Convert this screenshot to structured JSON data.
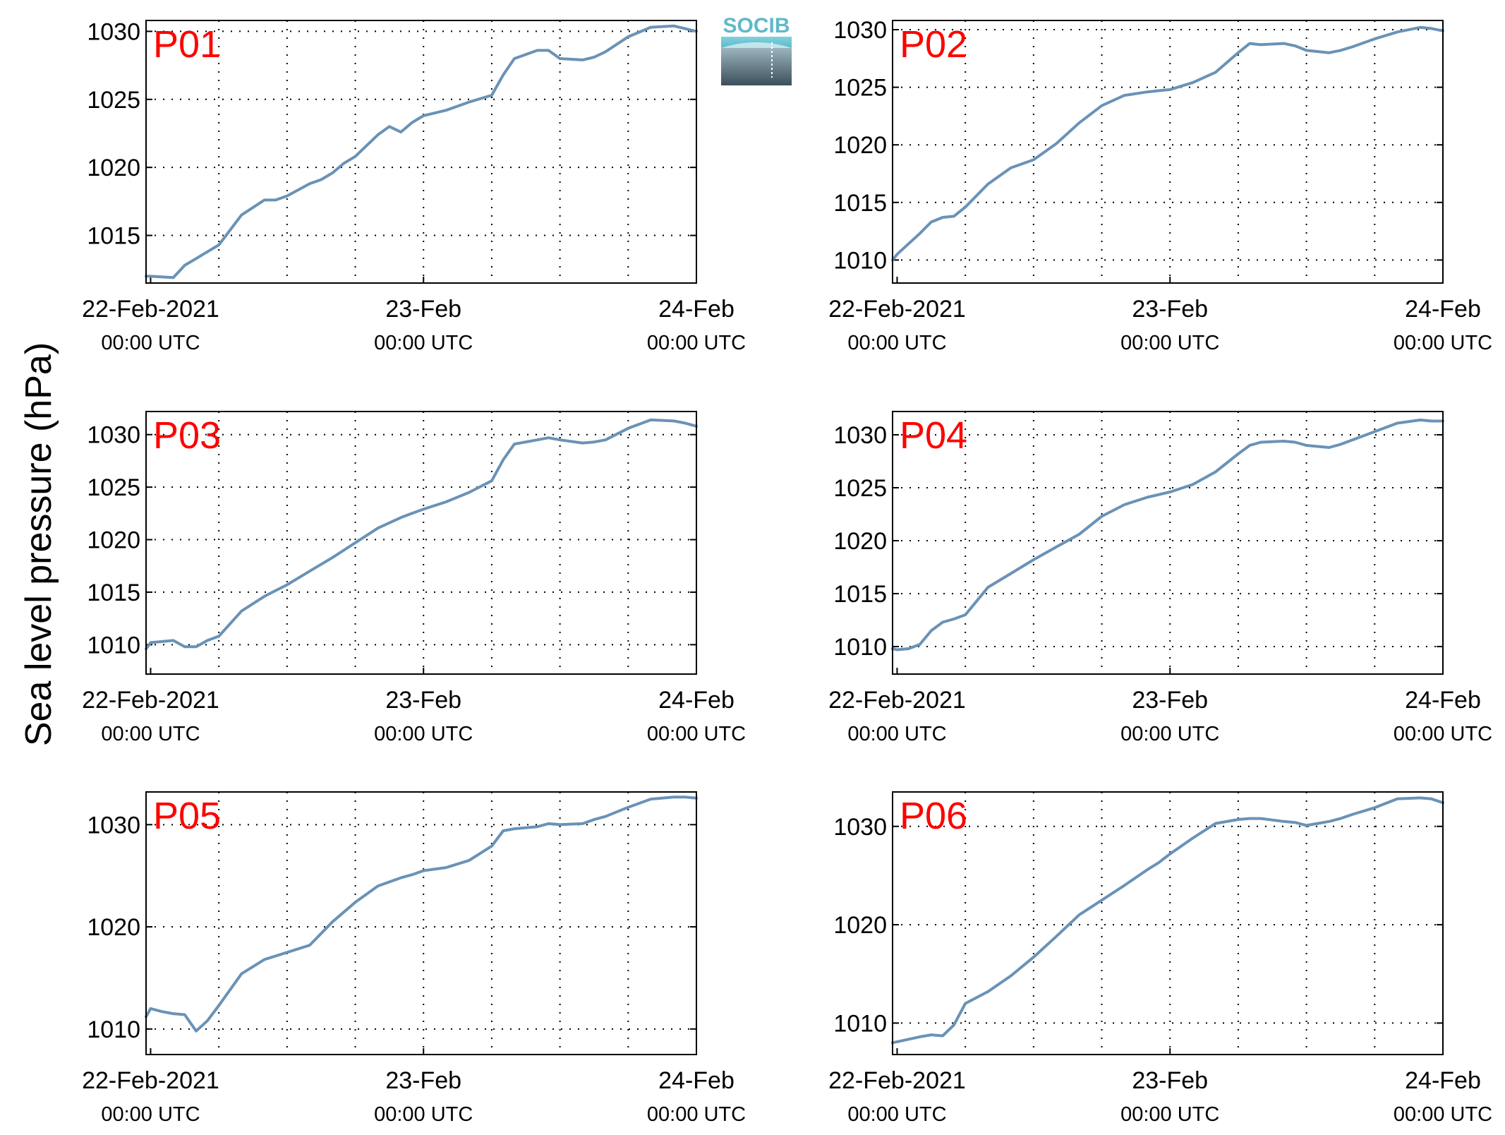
{
  "figure": {
    "ylabel": "Sea level pressure (hPa)",
    "logo_text": "SOCIB",
    "line_color": "#6a92b6",
    "label_color": "#ff0000",
    "x_ticks": [
      {
        "t": 0,
        "line1": "22-Feb-2021",
        "line2": "00:00 UTC"
      },
      {
        "t": 1,
        "line1": "23-Feb",
        "line2": "00:00 UTC"
      },
      {
        "t": 2,
        "line1": "24-Feb",
        "line2": "00:00 UTC"
      }
    ]
  },
  "chart_data": [
    {
      "type": "line",
      "title": "P01",
      "xlim": [
        -0.0167,
        2.0
      ],
      "ylim": [
        1011.5,
        1030.8
      ],
      "yticks": [
        1015,
        1020,
        1025,
        1030
      ],
      "series": [
        {
          "x": [
            -0.0167,
            0.0,
            0.083,
            0.125,
            0.167,
            0.208,
            0.25,
            0.333,
            0.417,
            0.458,
            0.5,
            0.583,
            0.625,
            0.667,
            0.708,
            0.75,
            0.833,
            0.875,
            0.917,
            0.958,
            1.0,
            1.083,
            1.167,
            1.25,
            1.292,
            1.333,
            1.417,
            1.458,
            1.5,
            1.583,
            1.625,
            1.667,
            1.75,
            1.833,
            1.917,
            1.958,
            2.0
          ],
          "y": [
            1012.0,
            1012.0,
            1011.9,
            1012.8,
            1013.3,
            1013.8,
            1014.3,
            1016.5,
            1017.6,
            1017.6,
            1017.9,
            1018.8,
            1019.1,
            1019.6,
            1020.3,
            1020.8,
            1022.4,
            1023.0,
            1022.6,
            1023.3,
            1023.8,
            1024.2,
            1024.8,
            1025.3,
            1026.8,
            1028.0,
            1028.6,
            1028.6,
            1028.0,
            1027.9,
            1028.1,
            1028.5,
            1029.6,
            1030.3,
            1030.4,
            1030.2,
            1030.0
          ]
        }
      ]
    },
    {
      "type": "line",
      "title": "P02",
      "xlim": [
        -0.0167,
        2.0
      ],
      "ylim": [
        1008.0,
        1030.8
      ],
      "yticks": [
        1010,
        1015,
        1020,
        1025,
        1030
      ],
      "series": [
        {
          "x": [
            -0.0167,
            0.0,
            0.083,
            0.125,
            0.167,
            0.208,
            0.25,
            0.333,
            0.417,
            0.5,
            0.583,
            0.667,
            0.75,
            0.833,
            0.917,
            0.958,
            1.0,
            1.083,
            1.167,
            1.25,
            1.292,
            1.333,
            1.417,
            1.458,
            1.5,
            1.583,
            1.625,
            1.667,
            1.75,
            1.833,
            1.917,
            1.958,
            2.0
          ],
          "y": [
            1010.0,
            1010.5,
            1012.3,
            1013.3,
            1013.7,
            1013.8,
            1014.6,
            1016.6,
            1018.0,
            1018.7,
            1020.1,
            1021.9,
            1023.4,
            1024.3,
            1024.6,
            1024.7,
            1024.8,
            1025.4,
            1026.3,
            1028.0,
            1028.8,
            1028.7,
            1028.8,
            1028.6,
            1028.2,
            1028.0,
            1028.2,
            1028.5,
            1029.2,
            1029.8,
            1030.2,
            1030.1,
            1029.9
          ]
        }
      ]
    },
    {
      "type": "line",
      "title": "P03",
      "xlim": [
        -0.0167,
        2.0
      ],
      "ylim": [
        1007.2,
        1032.2
      ],
      "yticks": [
        1010,
        1015,
        1020,
        1025,
        1030
      ],
      "series": [
        {
          "x": [
            -0.0167,
            0.0,
            0.042,
            0.083,
            0.125,
            0.167,
            0.208,
            0.25,
            0.333,
            0.417,
            0.5,
            0.583,
            0.667,
            0.75,
            0.833,
            0.917,
            0.958,
            1.0,
            1.083,
            1.167,
            1.25,
            1.292,
            1.333,
            1.417,
            1.458,
            1.5,
            1.583,
            1.625,
            1.667,
            1.75,
            1.833,
            1.917,
            1.958,
            2.0
          ],
          "y": [
            1009.6,
            1010.2,
            1010.3,
            1010.4,
            1009.8,
            1009.8,
            1010.4,
            1010.8,
            1013.2,
            1014.6,
            1015.7,
            1017.0,
            1018.3,
            1019.7,
            1021.1,
            1022.1,
            1022.5,
            1022.9,
            1023.6,
            1024.5,
            1025.6,
            1027.6,
            1029.1,
            1029.5,
            1029.7,
            1029.5,
            1029.2,
            1029.3,
            1029.5,
            1030.6,
            1031.4,
            1031.3,
            1031.1,
            1030.8
          ]
        }
      ]
    },
    {
      "type": "line",
      "title": "P04",
      "xlim": [
        -0.0167,
        2.0
      ],
      "ylim": [
        1007.4,
        1032.2
      ],
      "yticks": [
        1010,
        1015,
        1020,
        1025,
        1030
      ],
      "series": [
        {
          "x": [
            -0.0167,
            0.0,
            0.042,
            0.083,
            0.125,
            0.167,
            0.208,
            0.25,
            0.333,
            0.417,
            0.5,
            0.583,
            0.667,
            0.75,
            0.833,
            0.917,
            1.0,
            1.083,
            1.167,
            1.25,
            1.292,
            1.333,
            1.417,
            1.458,
            1.5,
            1.583,
            1.625,
            1.667,
            1.75,
            1.833,
            1.917,
            1.958,
            2.0
          ],
          "y": [
            1009.8,
            1009.7,
            1009.8,
            1010.2,
            1011.5,
            1012.3,
            1012.6,
            1013.0,
            1015.6,
            1016.9,
            1018.2,
            1019.4,
            1020.6,
            1022.3,
            1023.4,
            1024.1,
            1024.6,
            1025.3,
            1026.5,
            1028.2,
            1029.0,
            1029.3,
            1029.4,
            1029.3,
            1029.0,
            1028.8,
            1029.1,
            1029.5,
            1030.3,
            1031.1,
            1031.4,
            1031.3,
            1031.3
          ]
        }
      ]
    },
    {
      "type": "line",
      "title": "P05",
      "xlim": [
        -0.0167,
        2.0
      ],
      "ylim": [
        1007.5,
        1033.2
      ],
      "yticks": [
        1010,
        1020,
        1030
      ],
      "series": [
        {
          "x": [
            -0.0167,
            0.0,
            0.042,
            0.083,
            0.125,
            0.167,
            0.208,
            0.25,
            0.333,
            0.417,
            0.5,
            0.583,
            0.667,
            0.75,
            0.833,
            0.917,
            0.958,
            1.0,
            1.083,
            1.167,
            1.25,
            1.292,
            1.333,
            1.417,
            1.458,
            1.5,
            1.583,
            1.625,
            1.667,
            1.75,
            1.833,
            1.917,
            1.958,
            2.0
          ],
          "y": [
            1011.2,
            1012.0,
            1011.7,
            1011.5,
            1011.4,
            1009.8,
            1010.8,
            1012.3,
            1015.4,
            1016.8,
            1017.5,
            1018.2,
            1020.5,
            1022.4,
            1024.0,
            1024.8,
            1025.1,
            1025.5,
            1025.8,
            1026.5,
            1027.9,
            1029.4,
            1029.6,
            1029.8,
            1030.1,
            1030.0,
            1030.1,
            1030.5,
            1030.8,
            1031.7,
            1032.5,
            1032.7,
            1032.7,
            1032.6
          ]
        }
      ]
    },
    {
      "type": "line",
      "title": "P06",
      "xlim": [
        -0.0167,
        2.0
      ],
      "ylim": [
        1006.8,
        1033.5
      ],
      "yticks": [
        1010,
        1020,
        1030
      ],
      "series": [
        {
          "x": [
            -0.0167,
            0.0,
            0.083,
            0.125,
            0.167,
            0.208,
            0.25,
            0.333,
            0.417,
            0.5,
            0.583,
            0.667,
            0.75,
            0.833,
            0.917,
            0.958,
            1.0,
            1.083,
            1.167,
            1.25,
            1.292,
            1.333,
            1.417,
            1.458,
            1.5,
            1.583,
            1.625,
            1.667,
            1.75,
            1.833,
            1.917,
            1.958,
            2.0
          ],
          "y": [
            1008.0,
            1008.1,
            1008.6,
            1008.8,
            1008.7,
            1009.8,
            1012.0,
            1013.2,
            1014.8,
            1016.7,
            1018.8,
            1021.0,
            1022.5,
            1024.0,
            1025.6,
            1026.3,
            1027.2,
            1028.8,
            1030.3,
            1030.7,
            1030.8,
            1030.8,
            1030.5,
            1030.4,
            1030.1,
            1030.5,
            1030.8,
            1031.2,
            1031.9,
            1032.8,
            1032.9,
            1032.8,
            1032.4
          ]
        }
      ]
    }
  ]
}
